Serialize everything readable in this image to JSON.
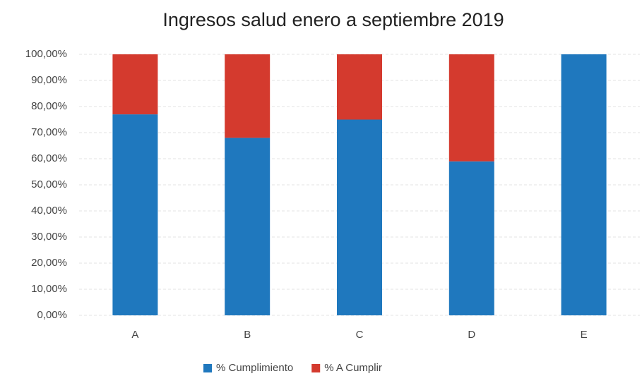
{
  "chart_data": {
    "type": "stacked_bar",
    "title": "Ingresos salud enero a septiembre 2019",
    "categories": [
      "A",
      "B",
      "C",
      "D",
      "E"
    ],
    "series": [
      {
        "name": "% Cumplimiento",
        "color": "#1f78be",
        "values": [
          77,
          68,
          75,
          59,
          100
        ]
      },
      {
        "name": "% A Cumplir",
        "color": "#d43a2e",
        "values": [
          23,
          32,
          25,
          41,
          0
        ]
      }
    ],
    "ylim": [
      0,
      100
    ],
    "yticks": [
      {
        "value": 0,
        "label": "0,00%"
      },
      {
        "value": 10,
        "label": "10,00%"
      },
      {
        "value": 20,
        "label": "20,00%"
      },
      {
        "value": 30,
        "label": "30,00%"
      },
      {
        "value": 40,
        "label": "40,00%"
      },
      {
        "value": 50,
        "label": "50,00%"
      },
      {
        "value": 60,
        "label": "60,00%"
      },
      {
        "value": 70,
        "label": "70,00%"
      },
      {
        "value": 80,
        "label": "80,00%"
      },
      {
        "value": 90,
        "label": "90,00%"
      },
      {
        "value": 100,
        "label": "100,00%"
      }
    ],
    "grid": true,
    "legend": "bottom"
  }
}
